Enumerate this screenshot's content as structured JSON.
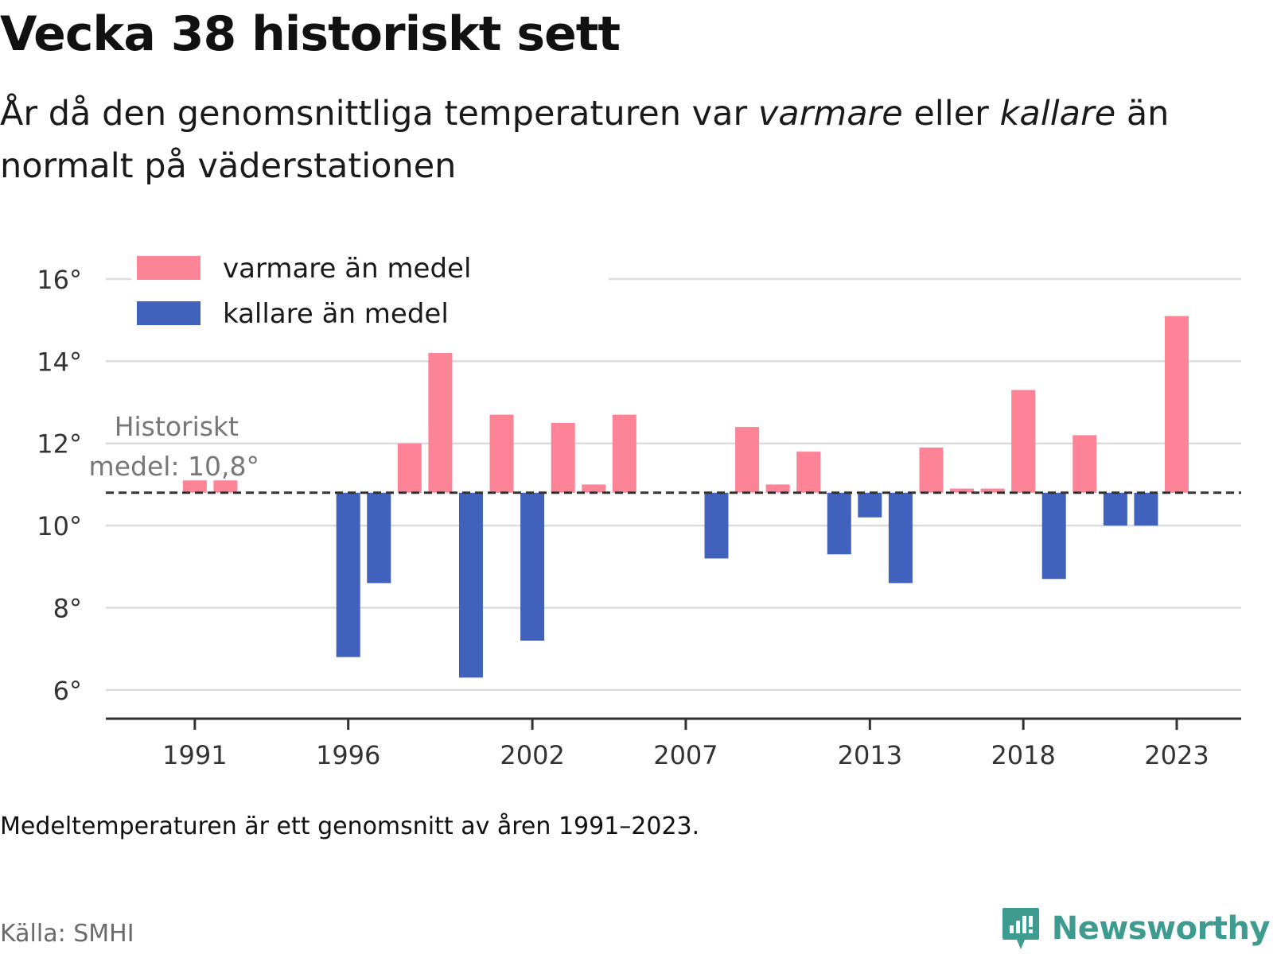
{
  "title": "Vecka 38 historiskt sett",
  "subtitle": {
    "part1": "År då den genomsnittliga temperaturen var ",
    "em1": "varmare",
    "part2": " eller ",
    "em2": "kallare",
    "part3": " än normalt på väderstationen"
  },
  "note": "Medeltemperaturen är ett genomsnitt av åren 1991–2023.",
  "source": "Källa: SMHI",
  "brand": {
    "name": "Newsworthy",
    "logo_icon": "newsworthy-logo-icon"
  },
  "colors": {
    "warmer": "#fd8397",
    "colder": "#4061bc",
    "grid": "#dcdcdc",
    "axis": "#333333",
    "text": "#111111",
    "annotation": "#777777",
    "brand": "#3e9b8f"
  },
  "chart_data": {
    "type": "bar",
    "x": [
      1991,
      1992,
      1993,
      1994,
      1995,
      1996,
      1997,
      1998,
      1999,
      2000,
      2001,
      2002,
      2003,
      2004,
      2005,
      2006,
      2007,
      2008,
      2009,
      2010,
      2011,
      2012,
      2013,
      2014,
      2015,
      2016,
      2017,
      2018,
      2019,
      2020,
      2021,
      2022,
      2023
    ],
    "values": [
      11.1,
      11.1,
      null,
      null,
      null,
      6.8,
      8.6,
      12.0,
      14.2,
      6.3,
      12.7,
      7.2,
      12.5,
      11.0,
      12.7,
      null,
      null,
      9.2,
      12.4,
      11.0,
      11.8,
      9.3,
      10.2,
      8.6,
      11.9,
      10.9,
      10.9,
      13.3,
      8.7,
      12.2,
      10.0,
      10.0,
      15.1
    ],
    "baseline": 10.8,
    "baseline_label": [
      "Historiskt",
      "medel: 10,8°"
    ],
    "yticks": [
      6,
      8,
      10,
      12,
      14,
      16
    ],
    "ytick_labels": [
      "6°",
      "8°",
      "10°",
      "12°",
      "14°",
      "16°"
    ],
    "xticks": [
      1991,
      1996,
      2002,
      2007,
      2013,
      2018,
      2023
    ],
    "xtick_labels": [
      "1991",
      "1996",
      "2002",
      "2007",
      "2013",
      "2018",
      "2023"
    ],
    "ylim": [
      5.3,
      16.6
    ],
    "xlim": [
      1988.1,
      2025.1
    ],
    "legend": [
      {
        "label": "varmare än medel",
        "color": "#fd8397"
      },
      {
        "label": "kallare än medel",
        "color": "#4061bc"
      }
    ],
    "legend_position": "top-left",
    "grid": true
  }
}
